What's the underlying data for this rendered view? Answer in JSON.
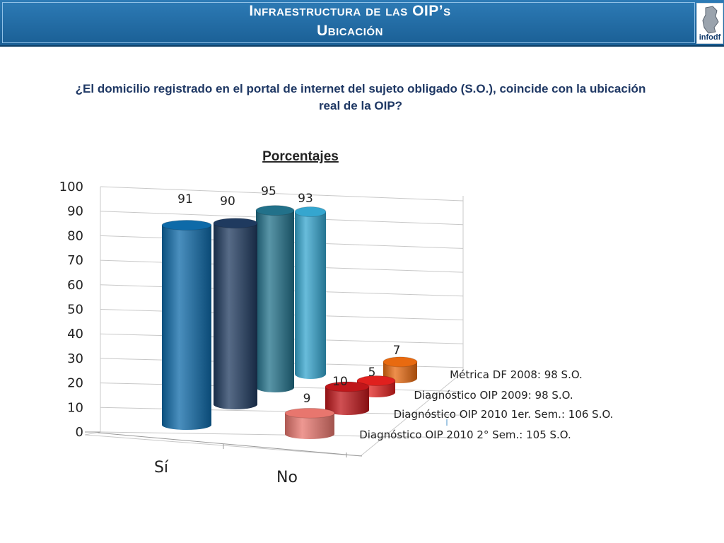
{
  "header": {
    "title_line1": "Infraestructura de las OIP’s",
    "title_line2": "Ubicación",
    "logo_text": "infodf"
  },
  "question": {
    "line1": "¿El domicilio registrado en el portal de internet del sujeto obligado (S.O.), coincide con la ubicación",
    "line2": "real de la OIP?"
  },
  "colors": {
    "banner": "#1f6aa5",
    "question_text": "#1f3864",
    "series": [
      "#0e6aa8",
      "#1f3a5f",
      "#22718a",
      "#35a6cf"
    ],
    "series_no": [
      "#e8766e",
      "#c0161a",
      "#e0201e",
      "#e86a10"
    ]
  },
  "chart_data": {
    "type": "bar",
    "title": "Porcentajes",
    "categories": [
      "Sí",
      "No"
    ],
    "ylim": [
      0,
      100
    ],
    "yticks": [
      0,
      10,
      20,
      30,
      40,
      50,
      60,
      70,
      80,
      90,
      100
    ],
    "grid": true,
    "legend_position": "right",
    "series": [
      {
        "name": "Diagnóstico OIP 2010 2° Sem.: 105 S.O.",
        "values": [
          91,
          9
        ]
      },
      {
        "name": "Diagnóstico OIP 2010 1er. Sem.: 106 S.O.",
        "values": [
          90,
          10
        ]
      },
      {
        "name": "Diagnóstico OIP 2009: 98 S.O.",
        "values": [
          95,
          5
        ]
      },
      {
        "name": "Métrica DF 2008: 98 S.O.",
        "values": [
          93,
          7
        ]
      }
    ]
  }
}
